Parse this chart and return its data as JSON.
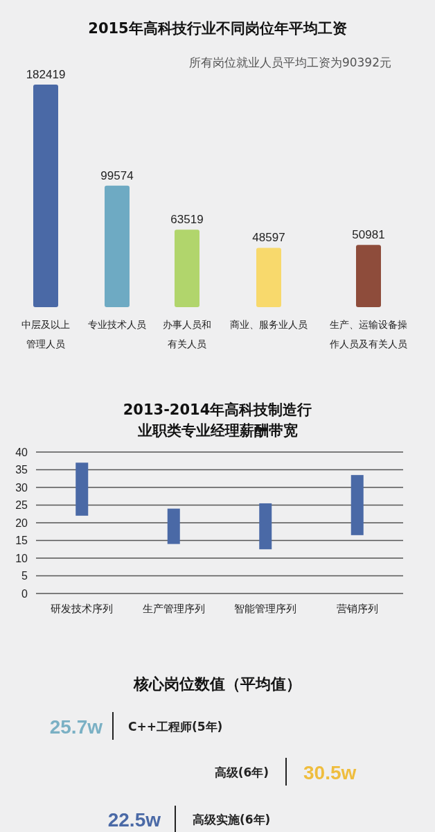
{
  "chart_data": [
    {
      "type": "bar",
      "title": "2015年高科技行业不同岗位年平均工资",
      "subtitle": "所有岗位就业人员平均工资为90392元",
      "categories": [
        "中层及以上管理人员",
        "专业技术人员",
        "办事人员和有关人员",
        "商业、服务业人员",
        "生产、运输设备操作人员及有关人员"
      ],
      "values": [
        182419,
        99574,
        63519,
        48597,
        50981
      ],
      "colors": [
        "#4a69a6",
        "#6eaac3",
        "#b1d56c",
        "#f8d96c",
        "#8e4c3b"
      ],
      "data_labels": true
    },
    {
      "type": "bar",
      "title": "2013-2014年高科技制造行业职类专业经理薪酬带宽",
      "categories": [
        "研发技术序列",
        "生产管理序列",
        "智能管理序列",
        "营销序列"
      ],
      "base": [
        22,
        14,
        12.5,
        16.5
      ],
      "values": [
        15,
        10,
        13,
        17
      ],
      "color": "#4a69a6",
      "ylim": [
        0,
        40
      ],
      "yticks": [
        0,
        5,
        10,
        15,
        20,
        25,
        30,
        35,
        40
      ],
      "grid": "y"
    },
    {
      "type": "other",
      "title": "核心岗位数值（平均值）",
      "annotations": [
        "25.7w",
        "C++工程师(5年)",
        "高级(6年)",
        "30.5w",
        "22.5w",
        "高级实施(6年)"
      ]
    }
  ]
}
